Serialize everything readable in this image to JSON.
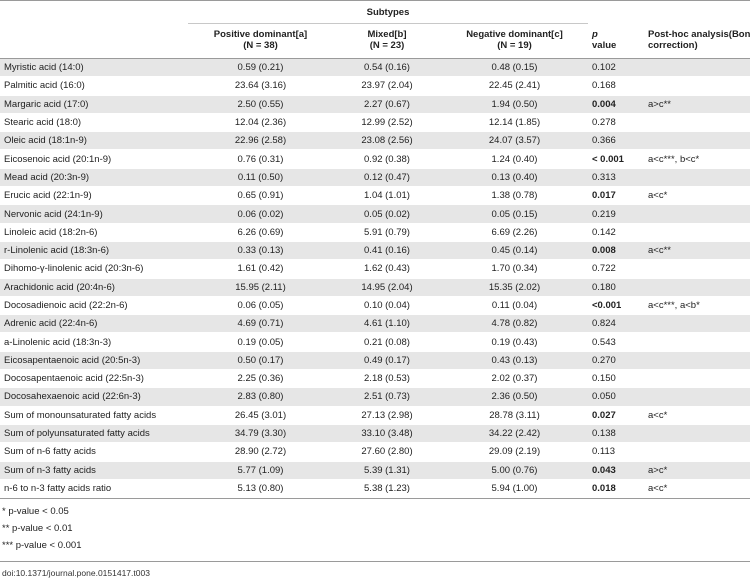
{
  "table": {
    "group_header": "Subtypes",
    "columns": {
      "col1": {
        "line1": "Positive dominant[a]",
        "line2": "(N = 38)"
      },
      "col2": {
        "line1": "Mixed[b]",
        "line2": "(N = 23)"
      },
      "col3": {
        "line1": "Negative dominant[c]",
        "line2": "(N = 19)"
      },
      "p": {
        "line1": "p",
        "line2": "value"
      },
      "posthoc": {
        "line1": "Post-hoc analysis(Bonferroni",
        "line2": "correction)"
      }
    },
    "rows": [
      {
        "name": "Myristic acid (14:0)",
        "v1": "0.59 (0.21)",
        "v2": "0.54 (0.16)",
        "v3": "0.48 (0.15)",
        "p": "0.102",
        "posthoc": ""
      },
      {
        "name": "Palmitic acid (16:0)",
        "v1": "23.64 (3.16)",
        "v2": "23.97 (2.04)",
        "v3": "22.45 (2.41)",
        "p": "0.168",
        "posthoc": ""
      },
      {
        "name": "Margaric acid (17:0)",
        "v1": "2.50 (0.55)",
        "v2": "2.27 (0.67)",
        "v3": "1.94 (0.50)",
        "p": "0.004",
        "posthoc": "a>c**"
      },
      {
        "name": "Stearic acid (18:0)",
        "v1": "12.04 (2.36)",
        "v2": "12.99 (2.52)",
        "v3": "12.14 (1.85)",
        "p": "0.278",
        "posthoc": ""
      },
      {
        "name": "Oleic acid (18:1n-9)",
        "v1": "22.96 (2.58)",
        "v2": "23.08 (2.56)",
        "v3": "24.07 (3.57)",
        "p": "0.366",
        "posthoc": ""
      },
      {
        "name": "Eicosenoic acid (20:1n-9)",
        "v1": "0.76 (0.31)",
        "v2": "0.92 (0.38)",
        "v3": "1.24 (0.40)",
        "p": "< 0.001",
        "posthoc": "a<c***, b<c*"
      },
      {
        "name": "Mead acid (20:3n-9)",
        "v1": "0.11 (0.50)",
        "v2": "0.12 (0.47)",
        "v3": "0.13 (0.40)",
        "p": "0.313",
        "posthoc": ""
      },
      {
        "name": "Erucic acid (22:1n-9)",
        "v1": "0.65 (0.91)",
        "v2": "1.04 (1.01)",
        "v3": "1.38 (0.78)",
        "p": "0.017",
        "posthoc": "a<c*"
      },
      {
        "name": "Nervonic acid (24:1n-9)",
        "v1": "0.06 (0.02)",
        "v2": "0.05 (0.02)",
        "v3": "0.05 (0.15)",
        "p": "0.219",
        "posthoc": ""
      },
      {
        "name": "Linoleic acid (18:2n-6)",
        "v1": "6.26 (0.69)",
        "v2": "5.91 (0.79)",
        "v3": "6.69 (2.26)",
        "p": "0.142",
        "posthoc": ""
      },
      {
        "name": "r-Linolenic acid (18:3n-6)",
        "v1": "0.33 (0.13)",
        "v2": "0.41 (0.16)",
        "v3": "0.45 (0.14)",
        "p": "0.008",
        "posthoc": "a<c**"
      },
      {
        "name": "Dihomo-γ-linolenic acid (20:3n-6)",
        "v1": "1.61 (0.42)",
        "v2": "1.62 (0.43)",
        "v3": "1.70 (0.34)",
        "p": "0.722",
        "posthoc": ""
      },
      {
        "name": "Arachidonic acid (20:4n-6)",
        "v1": "15.95 (2.11)",
        "v2": "14.95 (2.04)",
        "v3": "15.35 (2.02)",
        "p": "0.180",
        "posthoc": ""
      },
      {
        "name": "Docosadienoic acid (22:2n-6)",
        "v1": "0.06 (0.05)",
        "v2": "0.10 (0.04)",
        "v3": "0.11 (0.04)",
        "p": "<0.001",
        "posthoc": "a<c***, a<b*"
      },
      {
        "name": "Adrenic acid (22:4n-6)",
        "v1": "4.69 (0.71)",
        "v2": "4.61 (1.10)",
        "v3": "4.78 (0.82)",
        "p": "0.824",
        "posthoc": ""
      },
      {
        "name": "a-Linolenic acid (18:3n-3)",
        "v1": "0.19 (0.05)",
        "v2": "0.21 (0.08)",
        "v3": "0.19 (0.43)",
        "p": "0.543",
        "posthoc": ""
      },
      {
        "name": "Eicosapentaenoic acid (20:5n-3)",
        "v1": "0.50 (0.17)",
        "v2": "0.49 (0.17)",
        "v3": "0.43 (0.13)",
        "p": "0.270",
        "posthoc": ""
      },
      {
        "name": "Docosapentaenoic acid (22:5n-3)",
        "v1": "2.25 (0.36)",
        "v2": "2.18 (0.53)",
        "v3": "2.02 (0.37)",
        "p": "0.150",
        "posthoc": ""
      },
      {
        "name": "Docosahexaenoic acid (22:6n-3)",
        "v1": "2.83 (0.80)",
        "v2": "2.51 (0.73)",
        "v3": "2.36 (0.50)",
        "p": "0.050",
        "posthoc": ""
      },
      {
        "name": "Sum of monounsaturated fatty acids",
        "v1": "26.45 (3.01)",
        "v2": "27.13 (2.98)",
        "v3": "28.78 (3.11)",
        "p": "0.027",
        "posthoc": "a<c*"
      },
      {
        "name": "Sum of polyunsaturated fatty acids",
        "v1": "34.79 (3.30)",
        "v2": "33.10 (3.48)",
        "v3": "34.22 (2.42)",
        "p": "0.138",
        "posthoc": ""
      },
      {
        "name": "Sum of n-6 fatty acids",
        "v1": "28.90 (2.72)",
        "v2": "27.60 (2.80)",
        "v3": "29.09 (2.19)",
        "p": "0.113",
        "posthoc": ""
      },
      {
        "name": "Sum of n-3 fatty acids",
        "v1": "5.77 (1.09)",
        "v2": "5.39 (1.31)",
        "v3": "5.00 (0.76)",
        "p": "0.043",
        "posthoc": "a>c*"
      },
      {
        "name": "n-6 to n-3 fatty acids ratio",
        "v1": "5.13 (0.80)",
        "v2": "5.38 (1.23)",
        "v3": "5.94 (1.00)",
        "p": "0.018",
        "posthoc": "a<c*"
      }
    ],
    "bold_p_rows": [
      2,
      5,
      7,
      10,
      13,
      19,
      22,
      23
    ]
  },
  "notes": [
    "* p-value < 0.05",
    "** p-value < 0.01",
    "*** p-value < 0.001"
  ],
  "doi": "doi:10.1371/journal.pone.0151417.t003",
  "colors": {
    "shade": "#e6e6e6",
    "rule": "#9a9a9a"
  }
}
